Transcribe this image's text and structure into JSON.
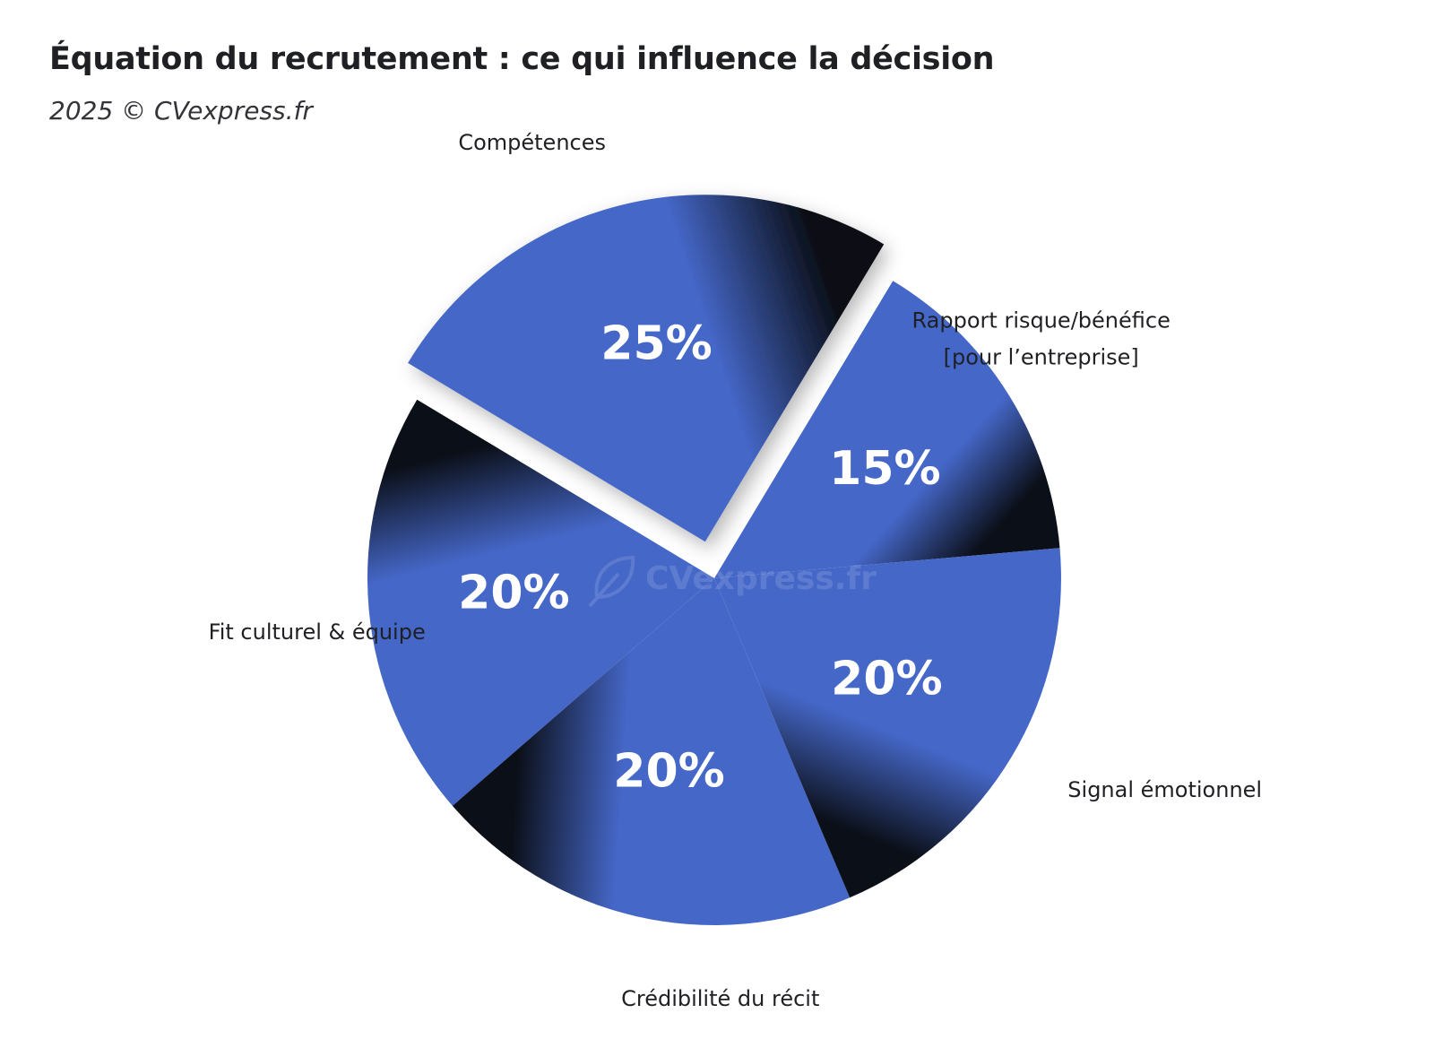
{
  "chart_data": {
    "type": "pie",
    "title": "Équation du recrutement : ce qui influence la décision",
    "subtitle": "2025 © CVexpress.fr",
    "watermark": "CVexpress.fr",
    "slices": [
      {
        "label": "Signal émotionnel",
        "value": 20,
        "value_label": "20%"
      },
      {
        "label": "Crédibilité du récit",
        "value": 20,
        "value_label": "20%"
      },
      {
        "label": "Fit culturel & équipe",
        "value": 20,
        "value_label": "20%"
      },
      {
        "label": "Compétences",
        "value": 25,
        "value_label": "25%",
        "exploded": true
      },
      {
        "label_lines": [
          "Rapport risque/bénéfice",
          "[pour l’entreprise]"
        ],
        "value": 15,
        "value_label": "15%"
      }
    ],
    "colors": {
      "slice": "#4567c8",
      "shade": "#0b0f18"
    },
    "legend": "none"
  }
}
